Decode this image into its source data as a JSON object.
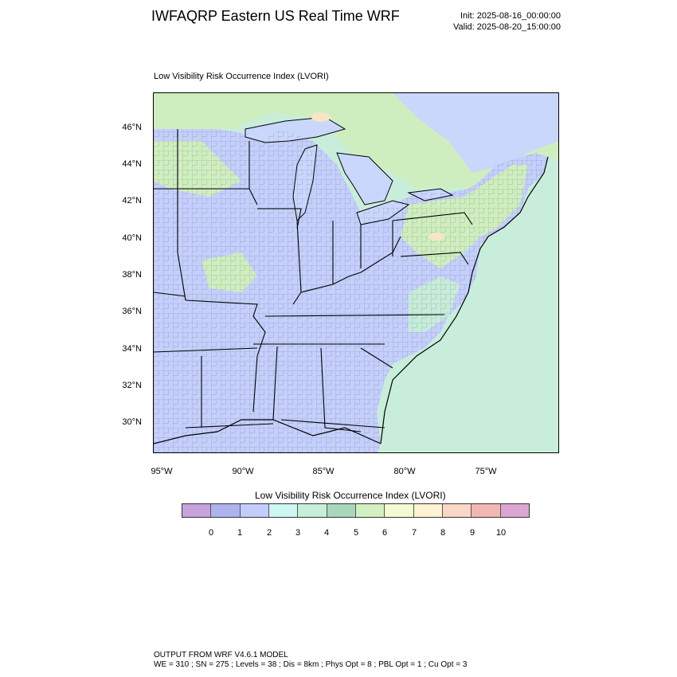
{
  "header": {
    "title": "IWFAQRP Eastern US Real Time WRF",
    "init": "Init: 2025-08-16_00:00:00",
    "valid": "Valid: 2025-08-20_15:00:00"
  },
  "map": {
    "subtitle": "Low Visibility Risk Occurrence Index   (LVORI)",
    "lat_labels": [
      "46°N",
      "44°N",
      "42°N",
      "40°N",
      "38°N",
      "36°N",
      "34°N",
      "32°N",
      "30°N"
    ],
    "lon_labels": [
      "95°W",
      "90°W",
      "85°W",
      "80°W",
      "75°W"
    ],
    "colors": {
      "land_low": "#c4cffc",
      "land_mid": "#c6ecda",
      "land_high": "#cfeec0",
      "water": "#c9d7fc",
      "ocean": "#c8eedb",
      "peaks": "#f6e6c3",
      "border": "#000000"
    }
  },
  "legend": {
    "title": "Low Visibility Risk Occurrence Index  (LVORI)",
    "colors": [
      "#c6a3dc",
      "#aeb3ee",
      "#c2cdfb",
      "#cdf7f3",
      "#c7eedb",
      "#a8d8bb",
      "#d3f0c3",
      "#f2fbd3",
      "#fef3d2",
      "#fbd7c6",
      "#f2b6b4",
      "#dca6d3"
    ],
    "ticks": [
      "0",
      "1",
      "2",
      "3",
      "4",
      "5",
      "6",
      "7",
      "8",
      "9",
      "10"
    ]
  },
  "footer": {
    "line1": "OUTPUT FROM WRF V4.6.1 MODEL",
    "line2": "WE = 310 ; SN = 275 ; Levels = 38 ; Dis = 8km ; Phys Opt = 8 ; PBL Opt = 1 ; Cu Opt = 3"
  }
}
